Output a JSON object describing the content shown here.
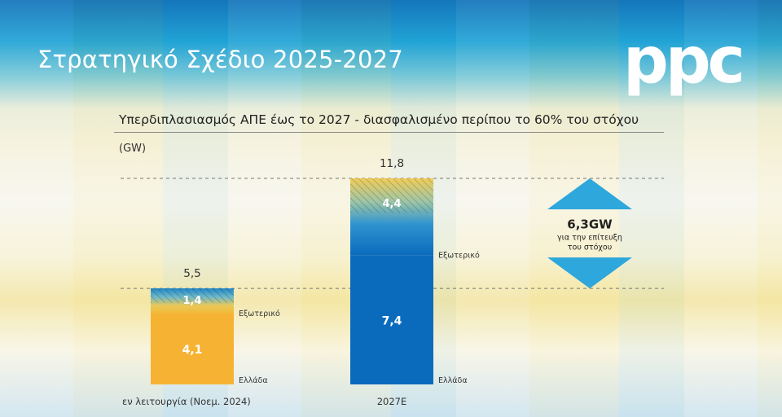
{
  "header": {
    "title": "Στρατηγικό Σχέδιο 2025-2027",
    "logo": "ppc"
  },
  "chart_data": {
    "type": "bar",
    "stacked": true,
    "title": "Υπερδιπλασιασμός ΑΠΕ έως το 2027 - διασφαλισμένο περίπου το 60% του στόχου",
    "ylabel": "(GW)",
    "ylim": [
      0,
      11.8
    ],
    "categories": [
      "εν λειτουργία (Νοεμ. 2024)",
      "2027E"
    ],
    "series": [
      {
        "name": "Ελλάδα",
        "values": [
          4.1,
          7.4
        ],
        "labels": [
          "4,1",
          "7,4"
        ]
      },
      {
        "name": "Εξωτερικό",
        "values": [
          1.4,
          4.4
        ],
        "labels": [
          "1,4",
          "4,4"
        ]
      }
    ],
    "totals": [
      5.5,
      11.8
    ],
    "total_labels": [
      "5,5",
      "11,8"
    ],
    "colors": {
      "bar1_main": "#f6b333",
      "bar2_main": "#0a6bbd",
      "hatch_blue": "#1f86c8",
      "hatch_yellow": "#e8c85a",
      "arrow": "#2ea7dc"
    },
    "gap_annotation": {
      "value": "6,3GW",
      "text_line1": "για την επίτευξη",
      "text_line2": "του στόχου"
    }
  }
}
